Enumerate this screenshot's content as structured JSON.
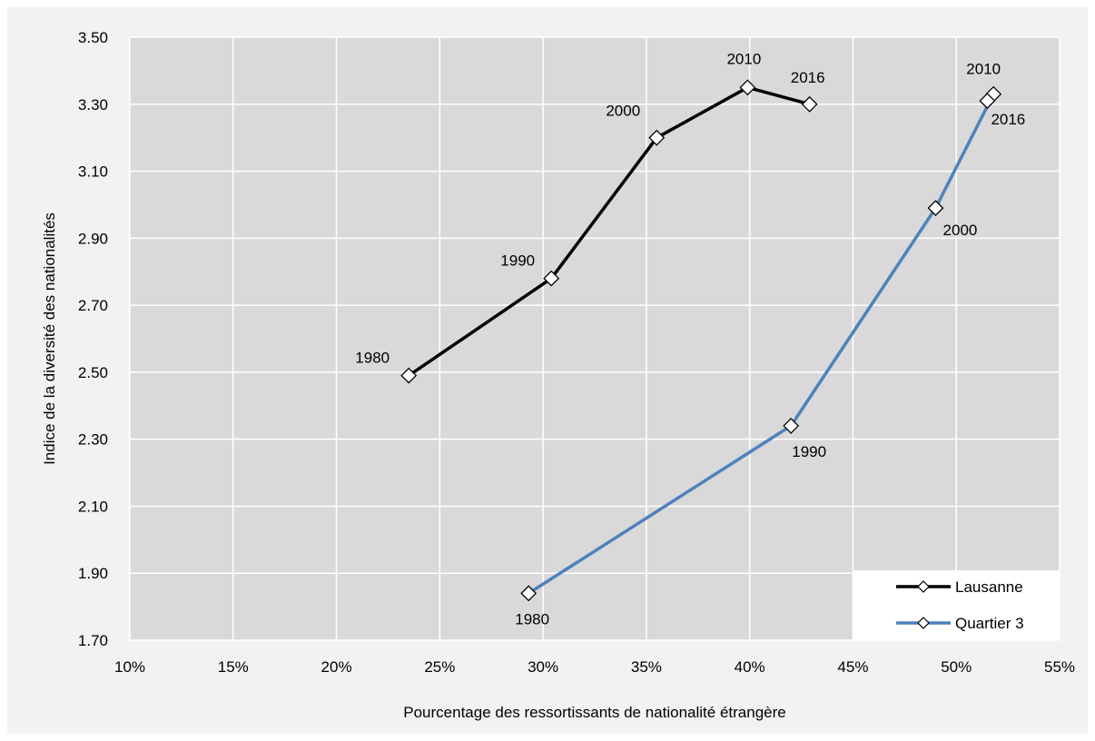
{
  "chart_data": {
    "type": "line",
    "xlabel": "Pourcentage des ressortissants de nationalité étrangère",
    "ylabel": "Indice de la diversité des nationalités",
    "xlim": [
      0.1,
      0.55
    ],
    "ylim": [
      1.7,
      3.5
    ],
    "x_ticks": [
      "10%",
      "15%",
      "20%",
      "25%",
      "30%",
      "35%",
      "40%",
      "45%",
      "50%",
      "55%"
    ],
    "y_ticks": [
      "1.70",
      "1.90",
      "2.10",
      "2.30",
      "2.50",
      "2.70",
      "2.90",
      "3.10",
      "3.30",
      "3.50"
    ],
    "grid": true,
    "legend_position": "bottom-right",
    "series": [
      {
        "name": "Lausanne",
        "color": "#000000",
        "marker": "diamond",
        "points": [
          {
            "label": "1980",
            "x": 0.235,
            "y": 2.49
          },
          {
            "label": "1990",
            "x": 0.304,
            "y": 2.78
          },
          {
            "label": "2000",
            "x": 0.355,
            "y": 3.2
          },
          {
            "label": "2010",
            "x": 0.399,
            "y": 3.35
          },
          {
            "label": "2016",
            "x": 0.429,
            "y": 3.3
          }
        ]
      },
      {
        "name": "Quartier 3",
        "color": "#4f81bd",
        "marker": "diamond",
        "points": [
          {
            "label": "1980",
            "x": 0.293,
            "y": 1.84
          },
          {
            "label": "1990",
            "x": 0.42,
            "y": 2.34
          },
          {
            "label": "2000",
            "x": 0.49,
            "y": 2.99
          },
          {
            "label": "2010",
            "x": 0.518,
            "y": 3.33
          },
          {
            "label": "2016",
            "x": 0.515,
            "y": 3.31
          }
        ]
      }
    ]
  }
}
